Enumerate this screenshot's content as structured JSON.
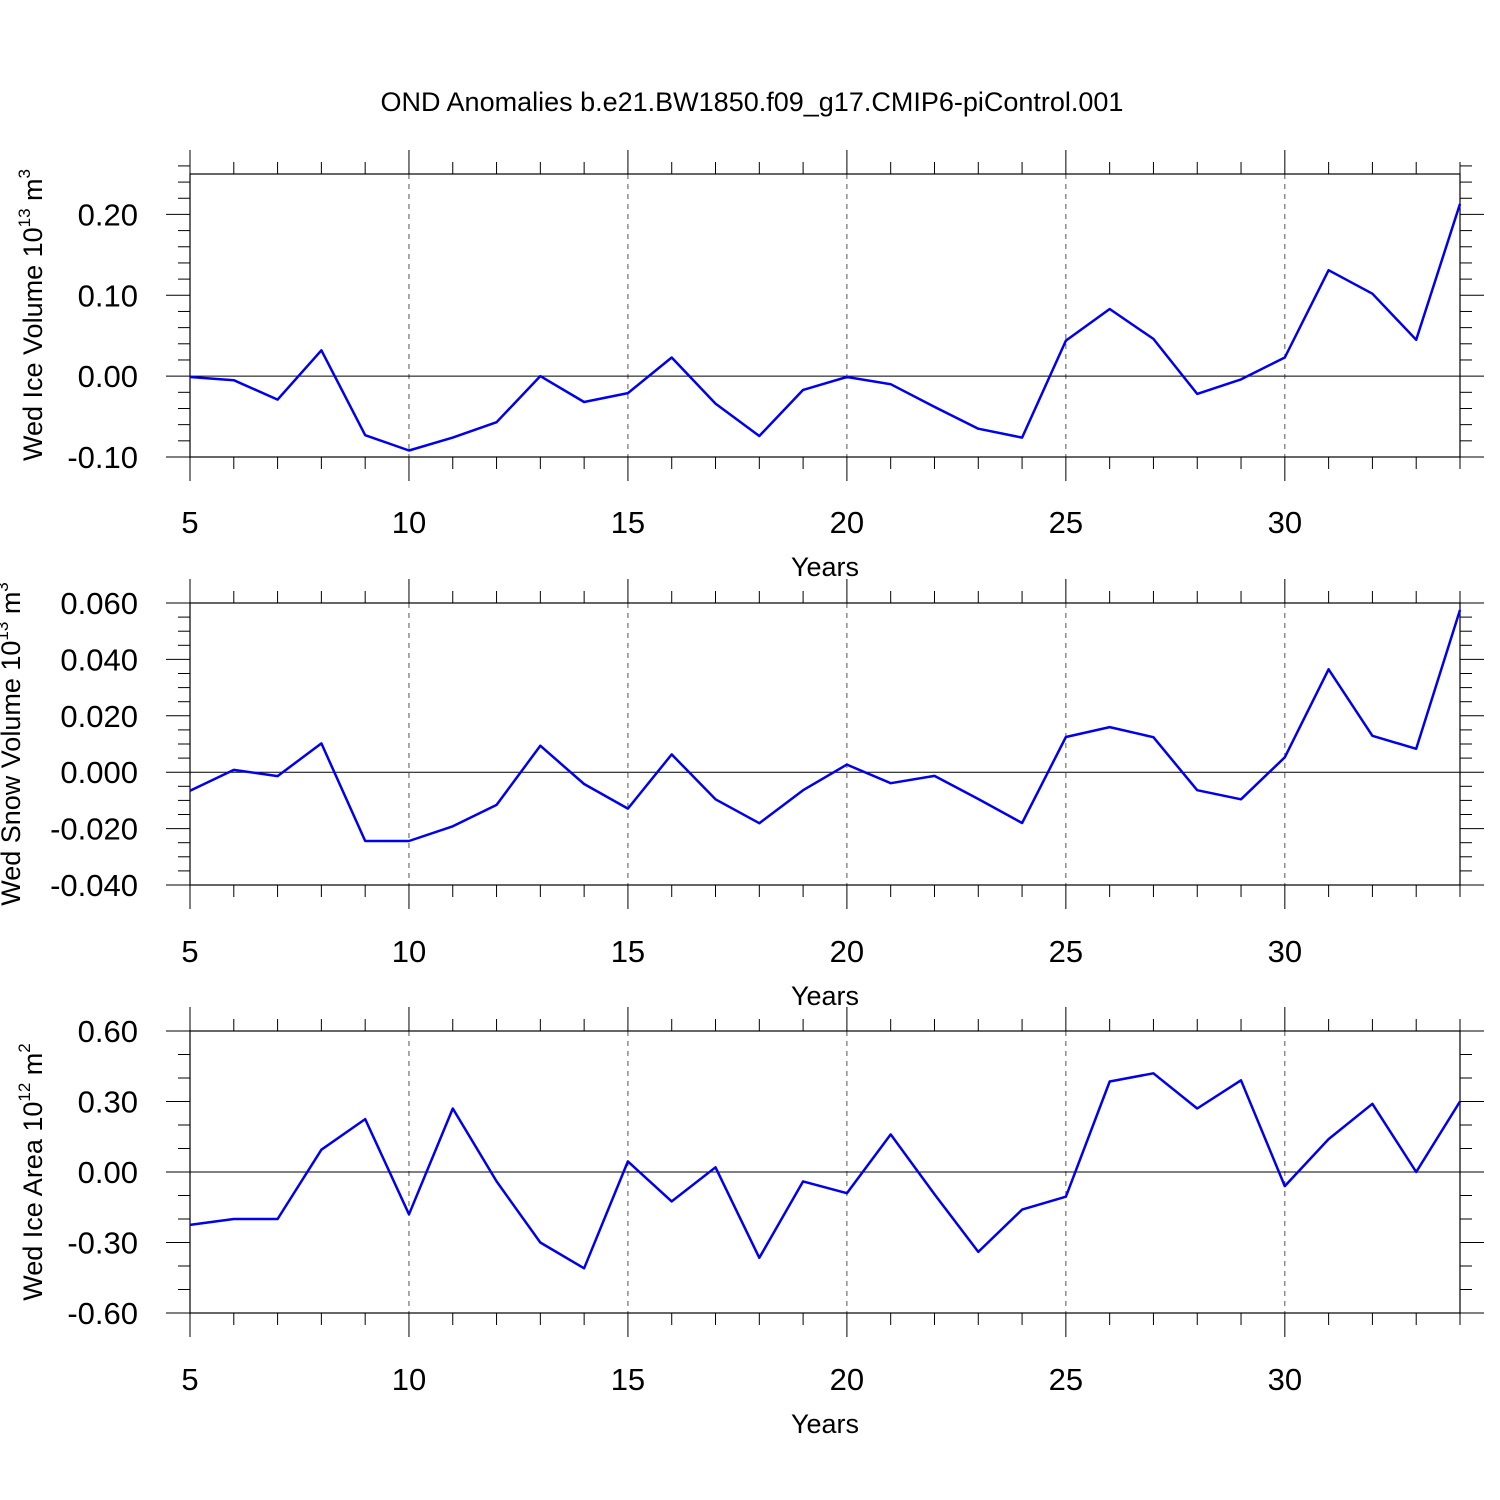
{
  "title": "OND Anomalies b.e21.BW1850.f09_g17.CMIP6-piControl.001",
  "chart_data": [
    {
      "type": "line",
      "ylabel_main": "Wed Ice Volume 10",
      "ylabel_exp": "13",
      "ylabel_unit": " m",
      "ylabel_unit_exp": "3",
      "xlabel": "Years",
      "xlim": [
        5,
        34
      ],
      "ylim": [
        -0.1,
        0.25
      ],
      "yticks": [
        -0.1,
        0.0,
        0.1,
        0.2
      ],
      "ytick_labels": [
        "-0.10",
        "0.00",
        "0.10",
        "0.20"
      ],
      "yminor_step": 0.02,
      "xticks": [
        5,
        10,
        15,
        20,
        25,
        30
      ],
      "xtick_labels": [
        "5",
        "10",
        "15",
        "20",
        "25",
        "30"
      ],
      "grid_x": [
        10,
        15,
        20,
        25,
        30
      ],
      "x": [
        5,
        6,
        7,
        8,
        9,
        10,
        11,
        12,
        13,
        14,
        15,
        16,
        17,
        18,
        19,
        20,
        21,
        22,
        23,
        24,
        25,
        26,
        27,
        28,
        29,
        30,
        31,
        32,
        33,
        34
      ],
      "values": [
        -0.001,
        -0.005,
        -0.029,
        0.032,
        -0.073,
        -0.092,
        -0.076,
        -0.057,
        0.0,
        -0.032,
        -0.021,
        0.023,
        -0.034,
        -0.074,
        -0.017,
        -0.001,
        -0.01,
        -0.038,
        -0.065,
        -0.076,
        0.044,
        0.083,
        0.046,
        -0.022,
        -0.004,
        0.023,
        0.131,
        0.102,
        0.045,
        0.213
      ]
    },
    {
      "type": "line",
      "ylabel_main": "Wed Snow Volume 10",
      "ylabel_exp": "13",
      "ylabel_unit": " m",
      "ylabel_unit_exp": "3",
      "xlabel": "Years",
      "xlim": [
        5,
        34
      ],
      "ylim": [
        -0.04,
        0.06
      ],
      "yticks": [
        -0.04,
        -0.02,
        0.0,
        0.02,
        0.04,
        0.06
      ],
      "ytick_labels": [
        "-0.040",
        "-0.020",
        "0.000",
        "0.020",
        "0.040",
        "0.060"
      ],
      "yminor_step": 0.005,
      "xticks": [
        5,
        10,
        15,
        20,
        25,
        30
      ],
      "xtick_labels": [
        "5",
        "10",
        "15",
        "20",
        "25",
        "30"
      ],
      "grid_x": [
        10,
        15,
        20,
        25,
        30
      ],
      "x": [
        5,
        6,
        7,
        8,
        9,
        10,
        11,
        12,
        13,
        14,
        15,
        16,
        17,
        18,
        19,
        20,
        21,
        22,
        23,
        24,
        25,
        26,
        27,
        28,
        29,
        30,
        31,
        32,
        33,
        34
      ],
      "values": [
        -0.0066,
        0.0008,
        -0.0014,
        0.0102,
        -0.0244,
        -0.0244,
        -0.0192,
        -0.0116,
        0.0094,
        -0.0042,
        -0.0129,
        0.0063,
        -0.0096,
        -0.0181,
        -0.0064,
        0.0027,
        -0.0039,
        -0.0013,
        -0.0095,
        -0.018,
        0.0125,
        0.016,
        0.0124,
        -0.0064,
        -0.0096,
        0.0053,
        0.0365,
        0.0129,
        0.0083,
        0.0575
      ]
    },
    {
      "type": "line",
      "ylabel_main": "Wed Ice Area 10",
      "ylabel_exp": "12",
      "ylabel_unit": " m",
      "ylabel_unit_exp": "2",
      "xlabel": "Years",
      "xlim": [
        5,
        34
      ],
      "ylim": [
        -0.6,
        0.6
      ],
      "yticks": [
        -0.6,
        -0.3,
        0.0,
        0.3,
        0.6
      ],
      "ytick_labels": [
        "-0.60",
        "-0.30",
        "0.00",
        "0.30",
        "0.60"
      ],
      "yminor_step": 0.1,
      "xticks": [
        5,
        10,
        15,
        20,
        25,
        30
      ],
      "xtick_labels": [
        "5",
        "10",
        "15",
        "20",
        "25",
        "30"
      ],
      "grid_x": [
        10,
        15,
        20,
        25,
        30
      ],
      "x": [
        5,
        6,
        7,
        8,
        9,
        10,
        11,
        12,
        13,
        14,
        15,
        16,
        17,
        18,
        19,
        20,
        21,
        22,
        23,
        24,
        25,
        26,
        27,
        28,
        29,
        30,
        31,
        32,
        33,
        34
      ],
      "values": [
        -0.225,
        -0.2,
        -0.2,
        0.095,
        0.225,
        -0.18,
        0.27,
        -0.04,
        -0.3,
        -0.41,
        0.045,
        -0.125,
        0.02,
        -0.365,
        -0.04,
        -0.09,
        0.16,
        -0.095,
        -0.34,
        -0.16,
        -0.105,
        0.385,
        0.42,
        0.27,
        0.39,
        -0.06,
        0.14,
        0.29,
        0.0,
        0.3
      ]
    }
  ]
}
